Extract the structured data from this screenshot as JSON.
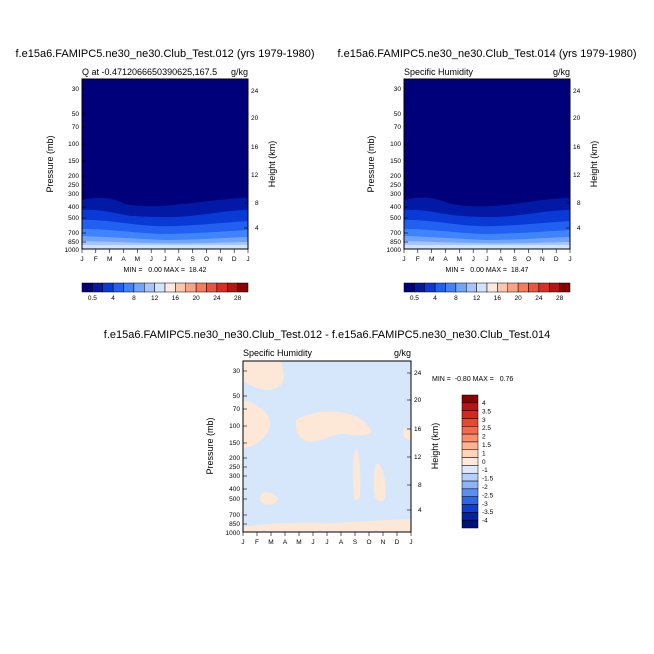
{
  "chart_data": [
    {
      "type": "heatmap",
      "title": "f.e15a6.FAMIPC5.ne30_ne30.Club_Test.012 (yrs 1979-1980)",
      "subtitle_left": "Q at -0.4712066650390625,167.5",
      "subtitle_right": "g/kg",
      "ylabel": "Pressure (mb)",
      "ylabel_right": "Height (km)",
      "x_ticks": [
        "J",
        "F",
        "M",
        "A",
        "M",
        "J",
        "J",
        "A",
        "S",
        "O",
        "N",
        "D",
        "J"
      ],
      "y_ticks": [
        "30",
        "50",
        "70",
        "100",
        "150",
        "200",
        "250",
        "300",
        "400",
        "500",
        "700",
        "850",
        "1000"
      ],
      "y_right_ticks": [
        "24",
        "20",
        "16",
        "12",
        "8",
        "4"
      ],
      "stats": "MIN =   0.00 MAX =  18.42",
      "colorbar_labels": [
        "0.5",
        "4",
        "8",
        "12",
        "16",
        "20",
        "24",
        "28"
      ],
      "colorbar_colors": [
        "#00007a",
        "#0219a6",
        "#0a3ad6",
        "#2160f0",
        "#3f84fb",
        "#72a4fc",
        "#a6c4fd",
        "#d2e3fe",
        "#fdeade",
        "#fcc8ab",
        "#fba282",
        "#f87b5c",
        "#f0533b",
        "#db2d22",
        "#b81414",
        "#8a0000"
      ]
    },
    {
      "type": "heatmap",
      "title": "f.e15a6.FAMIPC5.ne30_ne30.Club_Test.014 (yrs 1979-1980)",
      "subtitle_left": "Specific Humidity",
      "subtitle_right": "g/kg",
      "ylabel": "Pressure (mb)",
      "ylabel_right": "Height (km)",
      "x_ticks": [
        "J",
        "F",
        "M",
        "A",
        "M",
        "J",
        "J",
        "A",
        "S",
        "O",
        "N",
        "D",
        "J"
      ],
      "y_ticks": [
        "30",
        "50",
        "70",
        "100",
        "150",
        "200",
        "250",
        "300",
        "400",
        "500",
        "700",
        "850",
        "1000"
      ],
      "y_right_ticks": [
        "24",
        "20",
        "16",
        "12",
        "8",
        "4"
      ],
      "stats": "MIN =   0.00 MAX =  18.47",
      "colorbar_labels": [
        "0.5",
        "4",
        "8",
        "12",
        "16",
        "20",
        "24",
        "28"
      ],
      "colorbar_colors": [
        "#00007a",
        "#0219a6",
        "#0a3ad6",
        "#2160f0",
        "#3f84fb",
        "#72a4fc",
        "#a6c4fd",
        "#d2e3fe",
        "#fdeade",
        "#fcc8ab",
        "#fba282",
        "#f87b5c",
        "#f0533b",
        "#db2d22",
        "#b81414",
        "#8a0000"
      ]
    },
    {
      "type": "heatmap",
      "title": "f.e15a6.FAMIPC5.ne30_ne30.Club_Test.012 - f.e15a6.FAMIPC5.ne30_ne30.Club_Test.014",
      "subtitle_left": "Specific Humidity",
      "subtitle_right": "g/kg",
      "ylabel": "Pressure (mb)",
      "ylabel_right": "Height (km)",
      "x_ticks": [
        "J",
        "F",
        "M",
        "A",
        "M",
        "J",
        "J",
        "A",
        "S",
        "O",
        "N",
        "D",
        "J"
      ],
      "y_ticks": [
        "30",
        "50",
        "70",
        "100",
        "150",
        "200",
        "250",
        "300",
        "400",
        "500",
        "700",
        "850",
        "1000"
      ],
      "y_right_ticks": [
        "24",
        "20",
        "16",
        "12",
        "8",
        "4"
      ],
      "stats": "MIN =  -0.80 MAX =   0.76",
      "colorbar_labels": [
        "4",
        "3.5",
        "3",
        "2.5",
        "2",
        "1.5",
        "1",
        "0",
        "-1",
        "-1.5",
        "-2",
        "-2.5",
        "-3",
        "-3.5",
        "-4"
      ],
      "colorbar_colors": [
        "#8b0000",
        "#b81414",
        "#d8261b",
        "#ec4530",
        "#f46a4a",
        "#f88e6c",
        "#fbb392",
        "#fdd5bc",
        "#fdeada",
        "#dde9fb",
        "#b6d0fb",
        "#8db4f8",
        "#5b8ff3",
        "#2c67ea",
        "#0e3fd0",
        "#03249e",
        "#00107a"
      ],
      "fill_colors": {
        "positive": "#fde8d8",
        "negative": "#d6e6fb"
      }
    }
  ]
}
